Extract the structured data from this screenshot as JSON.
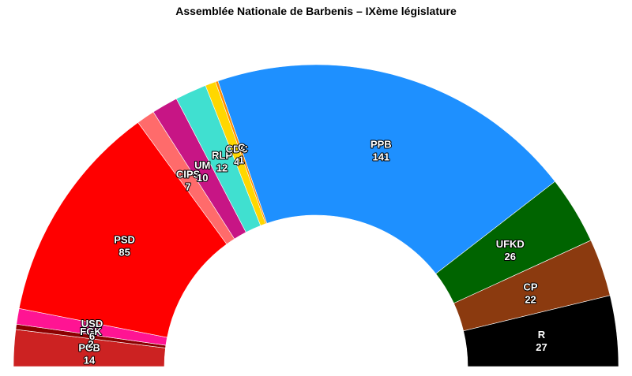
{
  "chart_data": {
    "type": "pie",
    "subtype": "hemicycle",
    "title": "Assemblée Nationale de Barbenis – IXème législature",
    "series": [
      {
        "name": "PCB",
        "value": 14,
        "color": "#cc2222"
      },
      {
        "name": "FGK",
        "value": 2,
        "color": "#8b0000"
      },
      {
        "name": "USD",
        "value": 6,
        "color": "#ff1493"
      },
      {
        "name": "PSD",
        "value": 85,
        "color": "#ff0000"
      },
      {
        "name": "CIPS",
        "value": 7,
        "color": "#ff6b6b"
      },
      {
        "name": "UM",
        "value": 10,
        "color": "#c71585"
      },
      {
        "name": "RLP",
        "value": 12,
        "color": "#40e0d0"
      },
      {
        "name": "CDC",
        "value": 4,
        "color": "#ffd700"
      },
      {
        "name": "C",
        "value": 1,
        "color": "#ff8c00"
      },
      {
        "name": "PPB",
        "value": 141,
        "color": "#1e90ff"
      },
      {
        "name": "UFKD",
        "value": 26,
        "color": "#006400"
      },
      {
        "name": "CP",
        "value": 22,
        "color": "#8b3a0f"
      },
      {
        "name": "R",
        "value": 27,
        "color": "#000000"
      }
    ]
  }
}
